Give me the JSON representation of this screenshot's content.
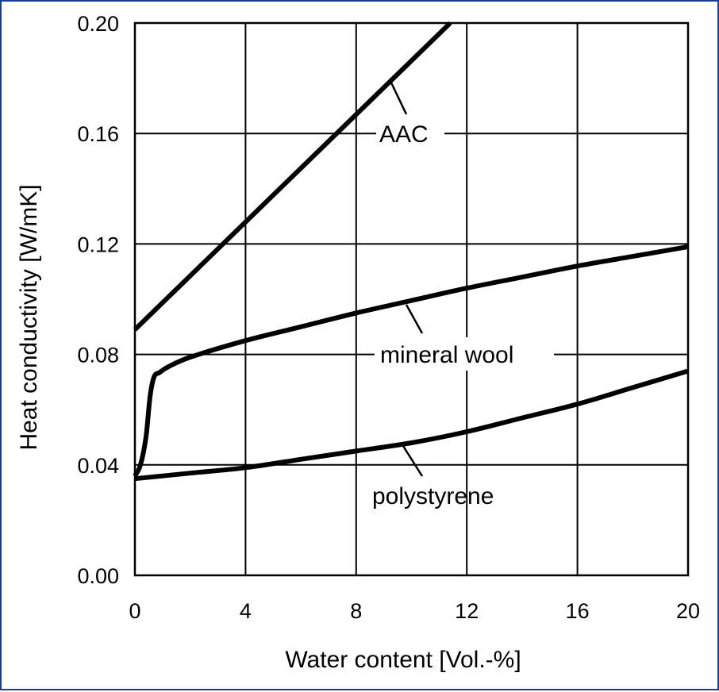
{
  "chart_data": {
    "type": "line",
    "xlabel": "Water content [Vol.-%]",
    "ylabel": "Heat conductivity [W/mK]",
    "xlim": [
      0,
      20
    ],
    "ylim": [
      0,
      0.2
    ],
    "xticks": [
      "0",
      "4",
      "8",
      "12",
      "16",
      "20"
    ],
    "yticks": [
      "0.00",
      "0.04",
      "0.08",
      "0.12",
      "0.16",
      "0.20"
    ],
    "grid": true,
    "series": [
      {
        "name": "AAC",
        "x": [
          0,
          11.4
        ],
        "y": [
          0.089,
          0.2
        ]
      },
      {
        "name": "mineral wool",
        "x": [
          0,
          0.2,
          0.4,
          0.55,
          0.7,
          0.9,
          1.2,
          2,
          4,
          6,
          8,
          10,
          12,
          14,
          16,
          18,
          20
        ],
        "y": [
          0.036,
          0.04,
          0.05,
          0.065,
          0.072,
          0.0735,
          0.0755,
          0.079,
          0.085,
          0.09,
          0.095,
          0.0995,
          0.104,
          0.108,
          0.112,
          0.1155,
          0.119
        ]
      },
      {
        "name": "polystyrene",
        "x": [
          0,
          2,
          4,
          6,
          8,
          10,
          12,
          14,
          16,
          18,
          20
        ],
        "y": [
          0.035,
          0.037,
          0.039,
          0.042,
          0.045,
          0.048,
          0.052,
          0.057,
          0.062,
          0.068,
          0.074
        ]
      }
    ]
  }
}
